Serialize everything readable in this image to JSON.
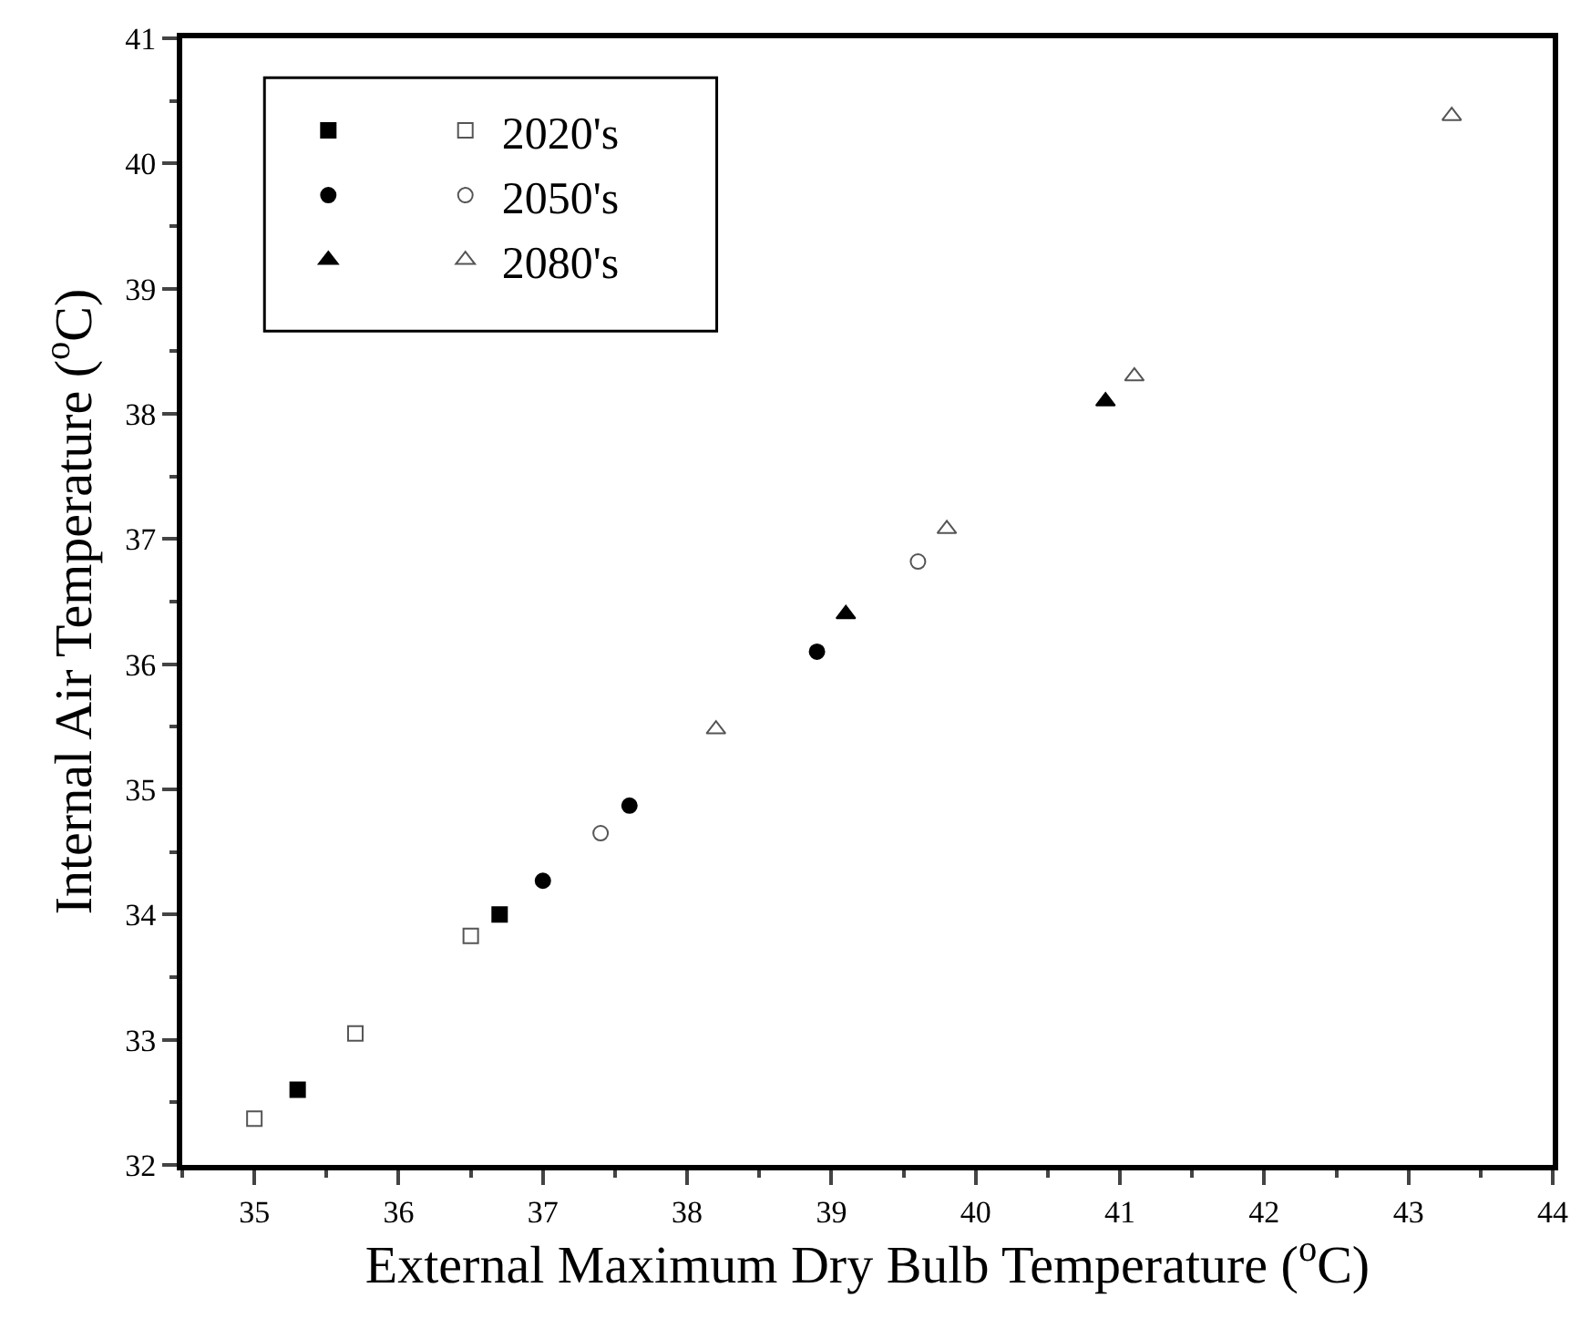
{
  "chart_data": {
    "type": "scatter",
    "xlabel": "External Maximum Dry Bulb Temperature ($^{o}$C)",
    "ylabel": "Internal Air Temperature ($^{o}$C)",
    "xlim": [
      34.5,
      44
    ],
    "ylim": [
      32,
      41
    ],
    "xticks": [
      {
        "value": 34.5,
        "label": null
      },
      35,
      {
        "value": 35.5,
        "label": null
      },
      36,
      {
        "value": 36.5,
        "label": null
      },
      37,
      {
        "value": 37.5,
        "label": null
      },
      38,
      {
        "value": 38.5,
        "label": null
      },
      39,
      {
        "value": 39.5,
        "label": null
      },
      40,
      {
        "value": 40.5,
        "label": null
      },
      41,
      {
        "value": 41.5,
        "label": null
      },
      42,
      {
        "value": 42.5,
        "label": null
      },
      43,
      {
        "value": 43.5,
        "label": null
      },
      44
    ],
    "yticks": [
      32,
      {
        "value": 32.5,
        "label": null
      },
      33,
      {
        "value": 33.5,
        "label": null
      },
      34,
      {
        "value": 34.5,
        "label": null
      },
      35,
      {
        "value": 35.5,
        "label": null
      },
      36,
      {
        "value": 36.5,
        "label": null
      },
      37,
      {
        "value": 37.5,
        "label": null
      },
      38,
      {
        "value": 38.5,
        "label": null
      },
      39,
      {
        "value": 39.5,
        "label": null
      },
      40,
      {
        "value": 40.5,
        "label": null
      },
      41
    ],
    "grid": false,
    "legend": "top left",
    "series": [
      {
        "marker": "square",
        "color": "#000000",
        "x": [
          35.3,
          36.7
        ],
        "values": [
          32.6,
          34.0
        ]
      },
      {
        "name": "2020's",
        "marker": "square",
        "color": "#555555",
        "x": [
          35.0,
          35.7,
          36.5
        ],
        "values": [
          32.37,
          33.05,
          33.83
        ]
      },
      {
        "marker": "circle",
        "color": "#000000",
        "x": [
          37.0,
          37.6,
          38.9
        ],
        "values": [
          34.27,
          34.87,
          36.1
        ]
      },
      {
        "name": "2050's",
        "marker": "circle",
        "color": "#555555",
        "x": [
          37.4,
          39.6
        ],
        "values": [
          34.65,
          36.82
        ]
      },
      {
        "marker": "triangle",
        "color": "#000000",
        "x": [
          39.1,
          40.9
        ],
        "values": [
          36.4,
          38.1
        ]
      },
      {
        "name": "2080's",
        "marker": "triangle",
        "color": "#555555",
        "x": [
          38.2,
          39.8,
          41.1,
          43.3
        ],
        "values": [
          35.48,
          37.08,
          38.3,
          40.38
        ]
      }
    ]
  }
}
